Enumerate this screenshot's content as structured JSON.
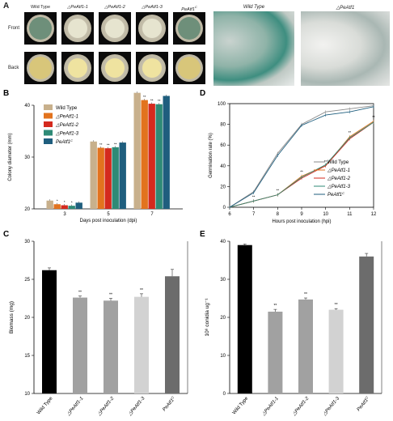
{
  "panel_a": {
    "label": "A",
    "columns": [
      "Wild Type",
      "△PeAtf1-1",
      "△PeAtf1-2",
      "△PeAtf1-3",
      "PeAtf1C"
    ],
    "rows": [
      "Front",
      "Back"
    ],
    "photo_labels": [
      "Wild Type",
      "△PeAtf1"
    ],
    "colors": {
      "front_wt": "#6e8f7a",
      "front_mut": "#e6e4cf",
      "back_wt": "#d8c67a",
      "back_mut": "#efe3a0"
    }
  },
  "chart_data": [
    {
      "panel": "B",
      "type": "bar",
      "ylabel": "Colony diameter (mm)",
      "xlabel": "Days post inoculation (dpi)",
      "categories": [
        "3",
        "5",
        "7"
      ],
      "ylim": [
        20,
        40
      ],
      "yticks": [
        "20",
        "30",
        "40"
      ],
      "legend": "top-left",
      "series": [
        {
          "name": "Wild Type",
          "color": "#c8b08c",
          "values": [
            21.6,
            33.0,
            42.4
          ]
        },
        {
          "name": "△PeAtf1-1",
          "color": "#e2731e",
          "values": [
            20.9,
            31.8,
            41.0
          ]
        },
        {
          "name": "△PeAtf1-2",
          "color": "#d42a1e",
          "values": [
            20.7,
            31.7,
            40.3
          ]
        },
        {
          "name": "△PeAtf1-3",
          "color": "#2e8a76",
          "values": [
            20.6,
            31.9,
            40.2
          ]
        },
        {
          "name": "PeAtf1C",
          "color": "#1f5e7e",
          "values": [
            21.2,
            32.8,
            41.8
          ]
        }
      ],
      "sig": [
        [
          "",
          "*",
          "*",
          "*",
          ""
        ],
        [
          "",
          "**",
          "**",
          "**",
          ""
        ],
        [
          "",
          "**",
          "**",
          "**",
          ""
        ]
      ]
    },
    {
      "panel": "D",
      "type": "line",
      "ylabel": "Germination rate (%)",
      "xlabel": "Hours post inoculation (hpi)",
      "x": [
        6,
        7,
        8,
        9,
        10,
        11,
        12
      ],
      "xticks": [
        "6",
        "7",
        "8",
        "9",
        "10",
        "11",
        "12"
      ],
      "ylim": [
        0,
        100
      ],
      "yticks": [
        "0",
        "20",
        "40",
        "60",
        "80",
        "100"
      ],
      "legend": "bottom-right",
      "series": [
        {
          "name": "Wild Type",
          "color": "#8a8a8a",
          "values": [
            0,
            15,
            52,
            80,
            92,
            95,
            98
          ]
        },
        {
          "name": "△PeAtf1-1",
          "color": "#e2731e",
          "values": [
            0,
            6,
            12,
            30,
            40,
            68,
            83
          ]
        },
        {
          "name": "△PeAtf1-2",
          "color": "#d42a1e",
          "values": [
            0,
            6,
            12,
            28,
            40,
            66,
            82
          ]
        },
        {
          "name": "△PeAtf1-3",
          "color": "#2e8a76",
          "values": [
            0,
            6,
            12,
            29,
            41,
            67,
            82
          ]
        },
        {
          "name": "PeAtf1C",
          "color": "#1f5e7e",
          "values": [
            0,
            14,
            50,
            79,
            89,
            92,
            97
          ]
        }
      ],
      "sig": [
        "",
        "**",
        "**",
        "**",
        "**",
        "**",
        "**"
      ]
    },
    {
      "panel": "C",
      "type": "bar",
      "ylabel": "Biomass (mg)",
      "categories": [
        "Wild Type",
        "△PeAtf1-1",
        "△PeAtf1-2",
        "△PeAtf1-3",
        "PeAtf1C"
      ],
      "ylim": [
        10,
        30
      ],
      "yticks": [
        "10",
        "15",
        "20",
        "25",
        "30"
      ],
      "values": [
        26.2,
        22.6,
        22.2,
        22.7,
        25.4
      ],
      "errors": [
        0.3,
        0.2,
        0.3,
        0.4,
        0.9
      ],
      "colors": [
        "#000000",
        "#a1a1a1",
        "#a1a1a1",
        "#d2d2d2",
        "#6c6c6c"
      ],
      "sig": [
        "",
        "**",
        "**",
        "**",
        ""
      ]
    },
    {
      "panel": "E",
      "type": "bar",
      "ylabel": "10⁸ conidia ug⁻¹",
      "categories": [
        "Wild Type",
        "△PeAtf1-1",
        "△PeAtf1-2",
        "△PeAtf1-3",
        "PeAtf1C"
      ],
      "ylim": [
        0,
        40
      ],
      "yticks": [
        "0",
        "10",
        "20",
        "30",
        "40"
      ],
      "values": [
        39.0,
        21.5,
        24.7,
        22.0,
        36.0
      ],
      "errors": [
        0.3,
        0.6,
        0.4,
        0.3,
        0.8
      ],
      "colors": [
        "#000000",
        "#a1a1a1",
        "#a1a1a1",
        "#d2d2d2",
        "#6c6c6c"
      ],
      "sig": [
        "",
        "**",
        "**",
        "**",
        ""
      ]
    }
  ]
}
